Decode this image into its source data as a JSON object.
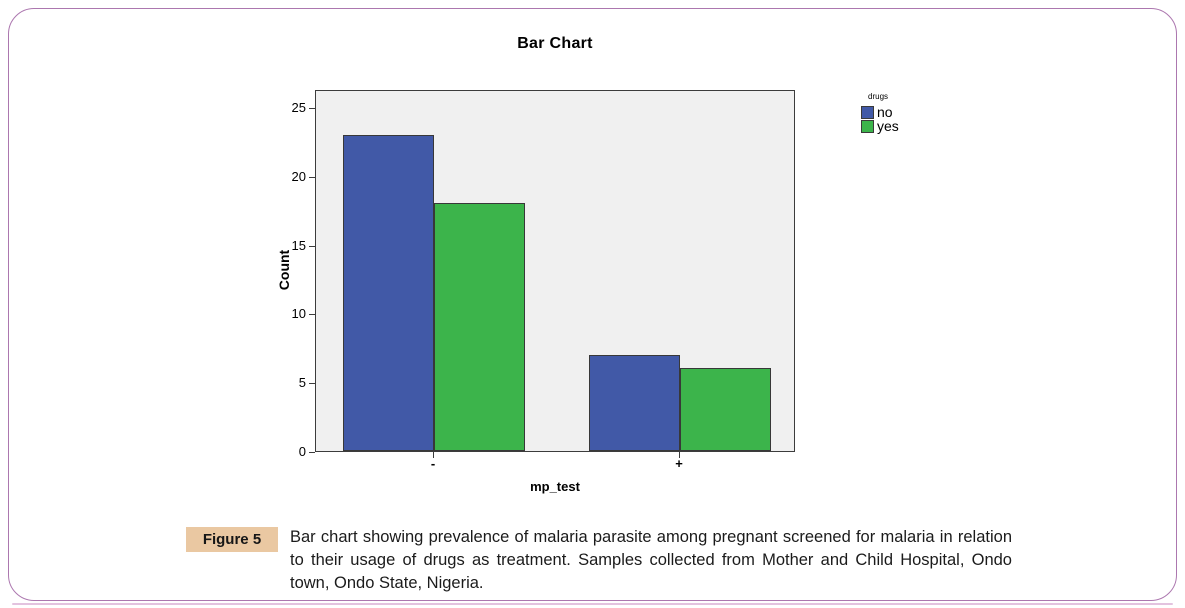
{
  "figure": {
    "border_color": "#AC77AF",
    "bottom_line_color": "#E3C3DF"
  },
  "chart_data": {
    "type": "bar",
    "title": "Bar Chart",
    "xlabel": "mp_test",
    "ylabel": "Count",
    "categories": [
      "-",
      "+"
    ],
    "series": [
      {
        "name": "no",
        "color": "#4159A7",
        "values": [
          23,
          7
        ]
      },
      {
        "name": "yes",
        "color": "#3CB44B",
        "values": [
          18,
          6
        ]
      }
    ],
    "legend_title": "drugs",
    "legend_position": "right",
    "ylim": [
      0,
      25
    ],
    "yticks": [
      0,
      5,
      10,
      15,
      20,
      25
    ],
    "grid": false,
    "plot_background": "#F0F0F0"
  },
  "caption": {
    "label": "Figure 5",
    "text": "Bar chart showing prevalence of malaria parasite among pregnant screened for malaria in relation to their usage of drugs as treatment. Samples collected from Mother and Child Hospital, Ondo town, Ondo State, Nigeria.",
    "badge_color": "#EAC8A2"
  }
}
